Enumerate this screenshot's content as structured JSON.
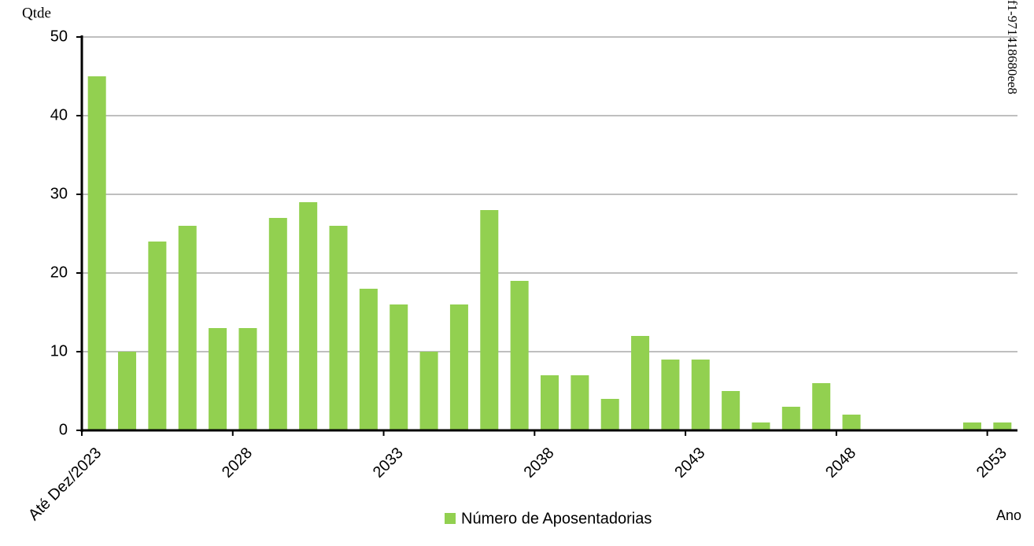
{
  "chart_data": {
    "type": "bar",
    "y_label": "Qtde",
    "x_label": "Ano",
    "annotation": "f1-971418680ee8",
    "categories": [
      "Até Dez/2023",
      null,
      null,
      null,
      null,
      "2028",
      null,
      null,
      null,
      null,
      "2033",
      null,
      null,
      null,
      null,
      "2038",
      null,
      null,
      null,
      null,
      "2043",
      null,
      null,
      null,
      null,
      "2048",
      null,
      null,
      null,
      null,
      "2053"
    ],
    "series": [
      {
        "name": "Número de Aposentadorias",
        "color": "#92d050",
        "values": [
          45,
          10,
          24,
          26,
          13,
          13,
          27,
          29,
          26,
          18,
          16,
          10,
          16,
          28,
          19,
          7,
          7,
          4,
          12,
          9,
          9,
          5,
          1,
          3,
          6,
          2,
          0,
          0,
          0,
          1,
          1
        ]
      }
    ],
    "ylim": [
      0,
      50
    ],
    "yticks": [
      0,
      10,
      20,
      30,
      40,
      50
    ],
    "grid": true
  }
}
